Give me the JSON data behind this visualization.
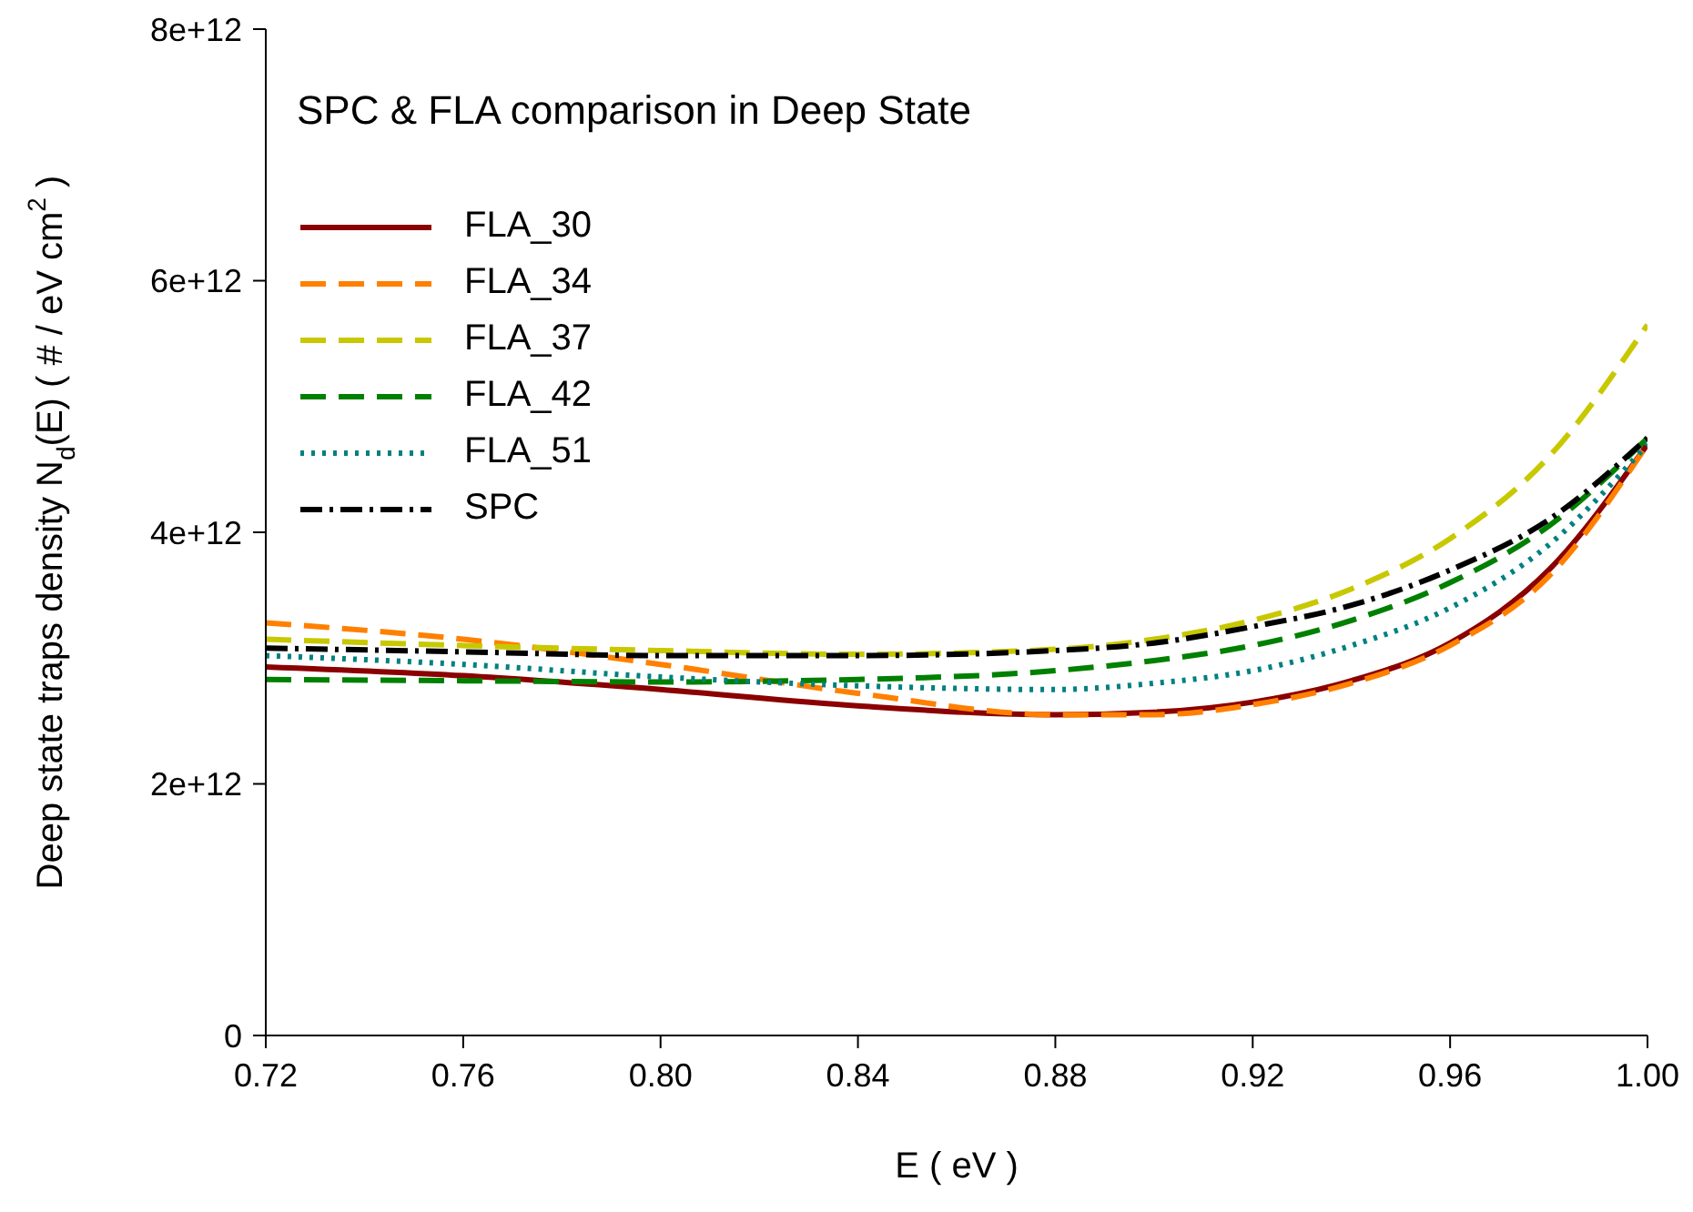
{
  "chart_data": {
    "type": "line",
    "title": "SPC & FLA comparison in Deep State",
    "xlabel": "E ( eV )",
    "ylabel": "Deep state traps density N$_{d}$(E) ( # / eV cm$^{2}$ )",
    "x": [
      0.72,
      0.76,
      0.8,
      0.84,
      0.88,
      0.9,
      0.92,
      0.94,
      0.96,
      0.98,
      1.0
    ],
    "series": [
      {
        "name": "FLA_30",
        "color": "#8b0000",
        "line_style": "solid",
        "values": [
          2930000000000.0,
          2860000000000.0,
          2750000000000.0,
          2620000000000.0,
          2550000000000.0,
          2570000000000.0,
          2650000000000.0,
          2820000000000.0,
          3120000000000.0,
          3700000000000.0,
          4700000000000.0
        ]
      },
      {
        "name": "FLA_34",
        "color": "#ff8000",
        "line_style": "dashed",
        "values": [
          3280000000000.0,
          3150000000000.0,
          2950000000000.0,
          2720000000000.0,
          2550000000000.0,
          2550000000000.0,
          2630000000000.0,
          2800000000000.0,
          3100000000000.0,
          3650000000000.0,
          4700000000000.0
        ]
      },
      {
        "name": "FLA_37",
        "color": "#c8c800",
        "line_style": "dashed",
        "values": [
          3150000000000.0,
          3100000000000.0,
          3060000000000.0,
          3030000000000.0,
          3070000000000.0,
          3150000000000.0,
          3300000000000.0,
          3550000000000.0,
          3950000000000.0,
          4600000000000.0,
          5650000000000.0
        ]
      },
      {
        "name": "FLA_42",
        "color": "#008000",
        "line_style": "dashed",
        "values": [
          2830000000000.0,
          2820000000000.0,
          2810000000000.0,
          2830000000000.0,
          2900000000000.0,
          2980000000000.0,
          3100000000000.0,
          3300000000000.0,
          3600000000000.0,
          4050000000000.0,
          4750000000000.0
        ]
      },
      {
        "name": "FLA_51",
        "color": "#008080",
        "line_style": "dotted",
        "values": [
          3020000000000.0,
          2950000000000.0,
          2850000000000.0,
          2780000000000.0,
          2750000000000.0,
          2800000000000.0,
          2900000000000.0,
          3100000000000.0,
          3400000000000.0,
          3900000000000.0,
          4700000000000.0
        ]
      },
      {
        "name": "SPC",
        "color": "#000000",
        "line_style": "dashdot",
        "values": [
          3080000000000.0,
          3050000000000.0,
          3020000000000.0,
          3020000000000.0,
          3060000000000.0,
          3120000000000.0,
          3250000000000.0,
          3420000000000.0,
          3700000000000.0,
          4100000000000.0,
          4750000000000.0
        ]
      }
    ],
    "xlim": [
      0.72,
      1.0
    ],
    "xticks": [
      0.72,
      0.76,
      {
        "value": 0.8,
        "label": "0.80"
      },
      0.84,
      0.88,
      0.92,
      0.96,
      {
        "value": 1.0,
        "label": "1.00"
      }
    ],
    "ylim": [
      0,
      8000000000000.0
    ],
    "yticks": [
      0,
      {
        "value": 2000000000000.0,
        "label": "2e+12"
      },
      {
        "value": 4000000000000.0,
        "label": "4e+12"
      },
      {
        "value": 6000000000000.0,
        "label": "6e+12"
      },
      {
        "value": 8000000000000.0,
        "label": "8e+12"
      }
    ],
    "grid": false,
    "legend": "top left",
    "marker": "none"
  }
}
